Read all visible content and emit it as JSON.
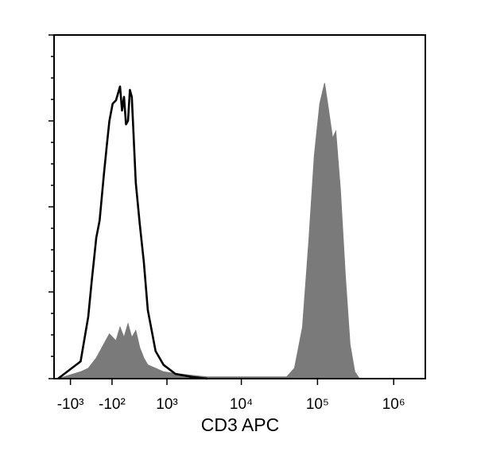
{
  "chart_data": {
    "type": "histogram-overlay",
    "x_label": "CD3 APC",
    "xscale": "asinh",
    "xlim": [
      -1700,
      2600000
    ],
    "ylim": [
      0,
      100
    ],
    "xticks": [
      {
        "value": -1000,
        "label": "-10³"
      },
      {
        "value": -100,
        "label": "-10²"
      },
      {
        "value": 1000,
        "label": "10³"
      },
      {
        "value": 10000,
        "label": "10⁴"
      },
      {
        "value": 100000,
        "label": "10⁵"
      },
      {
        "value": 1000000,
        "label": "10⁶"
      }
    ],
    "series": [
      {
        "style": "filled",
        "color": "#7a7a7a",
        "x": [
          -1500,
          -700,
          -520,
          -360,
          -230,
          -140,
          -40,
          20,
          80,
          140,
          200,
          265,
          335,
          410,
          490,
          670,
          890,
          1320,
          2180,
          3550,
          9300,
          24300,
          39300,
          49900,
          63500,
          76900,
          90900,
          107000,
          124000,
          136000,
          158000,
          174000,
          200000,
          232000,
          267000,
          309000,
          356000
        ],
        "values": [
          0,
          2,
          3,
          6,
          10,
          13,
          11,
          15,
          12,
          16,
          12,
          14,
          9,
          6,
          4,
          3,
          2,
          1.5,
          1,
          0.5,
          0.5,
          0.5,
          0.5,
          3,
          15,
          40,
          65,
          80,
          86,
          80,
          70,
          72,
          55,
          30,
          10,
          2,
          0
        ]
      },
      {
        "style": "outline",
        "color": "#000000",
        "x": [
          -1500,
          -700,
          -520,
          -450,
          -360,
          -300,
          -230,
          -180,
          -140,
          -90,
          -40,
          20,
          50,
          80,
          110,
          140,
          170,
          200,
          265,
          335,
          410,
          490,
          670,
          890,
          1320,
          2180,
          3550
        ],
        "values": [
          0,
          5,
          18,
          28,
          41,
          46,
          59,
          68,
          75,
          80,
          81,
          85,
          78,
          82,
          74,
          75,
          84,
          82,
          57,
          45,
          34,
          20,
          8,
          4,
          1.4,
          0.5,
          0
        ]
      }
    ]
  }
}
